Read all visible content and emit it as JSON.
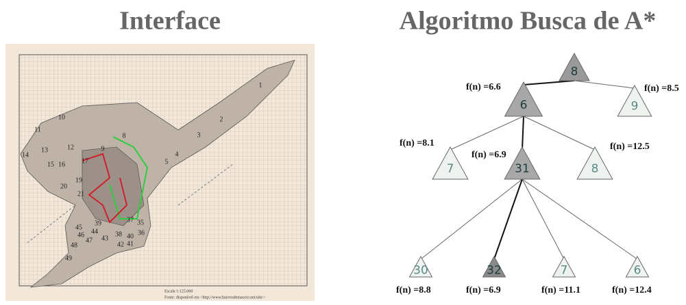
{
  "titles": {
    "left": "Interface",
    "right": "Algoritmo Busca de A*"
  },
  "map": {
    "region_labels": [
      "1",
      "2",
      "3",
      "4",
      "5",
      "8",
      "9",
      "10",
      "11",
      "12",
      "13",
      "14",
      "15",
      "16",
      "17",
      "19",
      "20",
      "21",
      "35",
      "36",
      "37",
      "38",
      "39",
      "40",
      "41",
      "42",
      "43",
      "44",
      "45",
      "46",
      "47",
      "48",
      "49"
    ],
    "scale": "Escala 1:125.000",
    "source": "Fonte: disponível em <http://www.bairrosdemaceio.net/site/>"
  },
  "tree": {
    "nodes": [
      {
        "label": "8",
        "f": null
      },
      {
        "label": "6",
        "f": "f(n) =6.6"
      },
      {
        "label": "9",
        "f": "f(n) =8.5"
      },
      {
        "label": "7",
        "f": "f(n) =8.1"
      },
      {
        "label": "31",
        "f": "f(n) =6.9"
      },
      {
        "label": "8",
        "f": "f(n) =12.5"
      },
      {
        "label": "30",
        "f": "f(n) =8.8"
      },
      {
        "label": "32",
        "f": "f(n) =6.9"
      },
      {
        "label": "7",
        "f": "f(n) =11.1"
      },
      {
        "label": "6",
        "f": "f(n) =12.4"
      }
    ]
  }
}
